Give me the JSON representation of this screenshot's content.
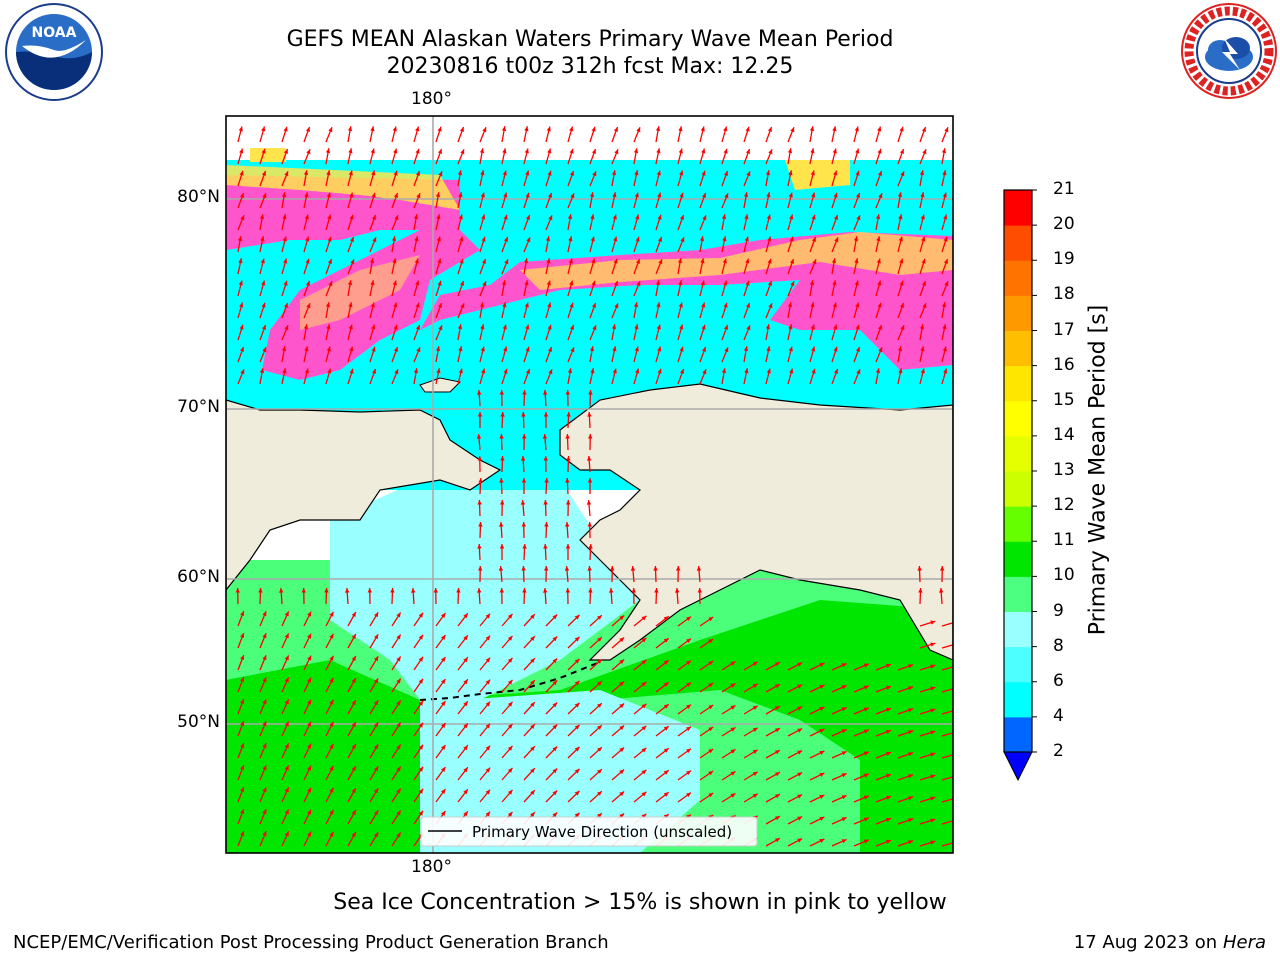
{
  "header": {
    "title_line1": "GEFS MEAN Alaskan Waters Primary Wave Mean Period",
    "title_line2": "20230816 t00z 312h fcst   Max: 12.25"
  },
  "logos": {
    "left": {
      "name": "noaa-logo",
      "text": "NOAA"
    },
    "right": {
      "name": "nws-logo",
      "text": "NATIONAL WEATHER SERVICE"
    }
  },
  "map": {
    "lon_label_top": "180°",
    "lon_label_bottom": "180°",
    "lat_labels": [
      "80°N",
      "70°N",
      "60°N",
      "50°N"
    ],
    "legend_label": "Primary Wave Direction (unscaled)",
    "colors": {
      "land": "#efecdc",
      "ocean_cyan": "#00ffff",
      "ocean_light": "#99ffff",
      "green_light": "#4cff7a",
      "green": "#00e600",
      "ice_pink": "#ff55cc",
      "ice_yellow": "#ffe44c",
      "arrow": "#ff0000"
    }
  },
  "colorbar": {
    "title": "Primary Wave Mean Period [s]",
    "ticks": [
      "2",
      "4",
      "6",
      "8",
      "9",
      "10",
      "11",
      "12",
      "13",
      "14",
      "15",
      "16",
      "17",
      "18",
      "19",
      "20",
      "21"
    ],
    "colors": [
      "#0066ff",
      "#00ffff",
      "#4dffff",
      "#99ffff",
      "#4dff80",
      "#00e600",
      "#66ff00",
      "#ccff00",
      "#e6ff00",
      "#ffff00",
      "#ffe600",
      "#ffbf00",
      "#ff9900",
      "#ff7300",
      "#ff4d00",
      "#ff0000"
    ],
    "under_color": "#0000ff"
  },
  "caption": "Sea Ice Concentration > 15% is shown in pink to yellow",
  "footer": {
    "left": "NCEP/EMC/Verification Post Processing Product Generation Branch",
    "right_date": "17 Aug 2023 on",
    "right_host": "Hera"
  }
}
